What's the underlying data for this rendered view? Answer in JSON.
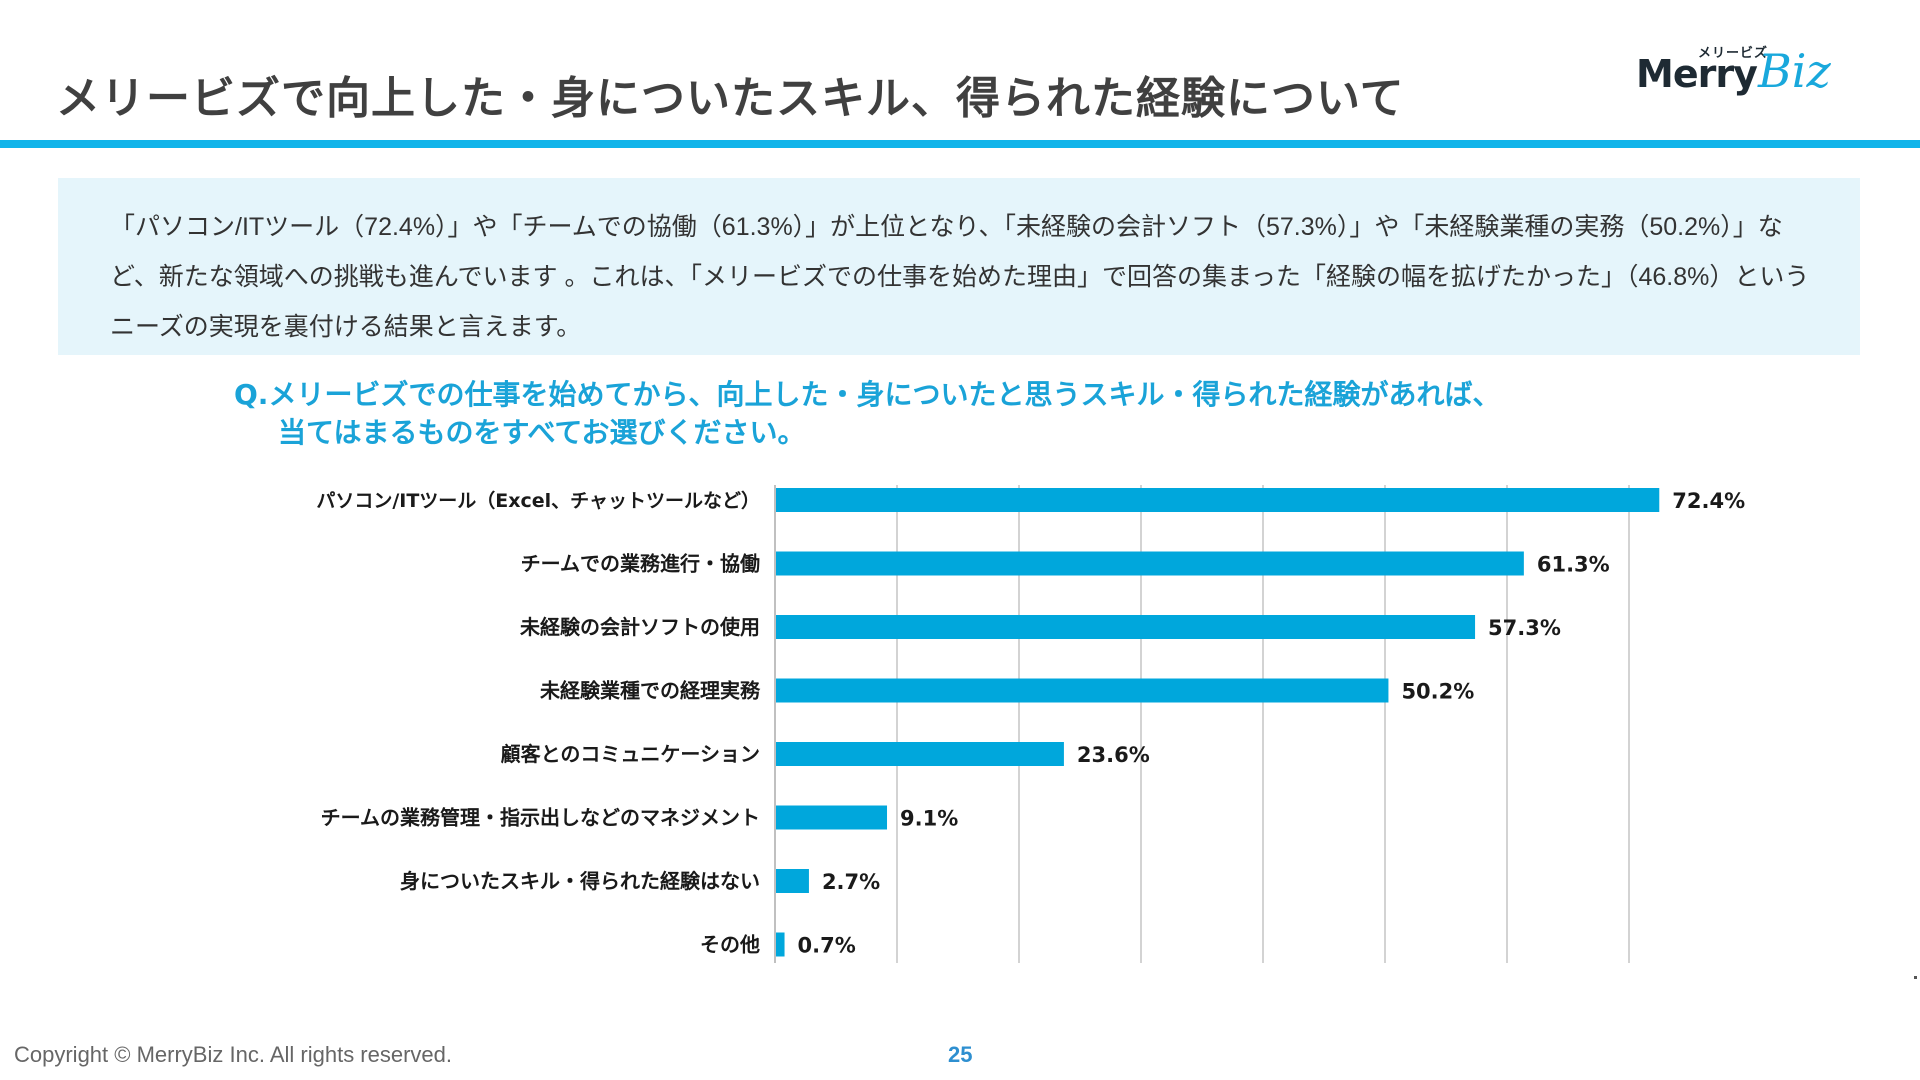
{
  "header": {
    "title": "メリービズで向上した・身についたスキル、得られた経験について",
    "logo": {
      "kana": "メリービズ",
      "word1": "Merry",
      "word2": "Biz"
    }
  },
  "summary": {
    "text": "「パソコン/ITツール（72.4%）」や「チームでの協働（61.3%）」が上位となり、「未経験の会計ソフト（57.3%）」や「未経験業種の実務（50.2%）」など、新たな領域への挑戦も進んでいます 。これは、「メリービズでの仕事を始めた理由」で回答の集まった「経験の幅を拡げたかった」（46.8%）というニーズの実現を裏付ける結果と言えます。"
  },
  "question": {
    "line1": "Q.メリービズでの仕事を始めてから、向上した・身についたと思うスキル・得られた経験があれば、",
    "line2": "当てはまるものをすべてお選びください。"
  },
  "colors": {
    "accent": "#11b4ea",
    "bar": "#00a7dc",
    "grid": "#c8c8c8",
    "question": "#1aa3d8"
  },
  "chart_data": {
    "type": "bar",
    "orientation": "horizontal",
    "title": "",
    "xlabel": "",
    "ylabel": "",
    "xlim": [
      0,
      70
    ],
    "grid": true,
    "grid_step": 10,
    "legend": "none",
    "categories": [
      "パソコン/ITツール（Excel、チャットツールなど）",
      "チームでの業務進行・協働",
      "未経験の会計ソフトの使用",
      "未経験業種での経理実務",
      "顧客とのコミュニケーション",
      "チームの業務管理・指示出しなどのマネジメント",
      "身についたスキル・得られた経験はない",
      "その他"
    ],
    "values": [
      72.4,
      61.3,
      57.3,
      50.2,
      23.6,
      9.1,
      2.7,
      0.7
    ],
    "labels": [
      "72.4%",
      "61.3%",
      "57.3%",
      "50.2%",
      "23.6%",
      "9.1%",
      "2.7%",
      "0.7%"
    ]
  },
  "footer": {
    "copyright": "Copyright © MerryBiz Inc. All rights reserved.",
    "page": "25"
  }
}
